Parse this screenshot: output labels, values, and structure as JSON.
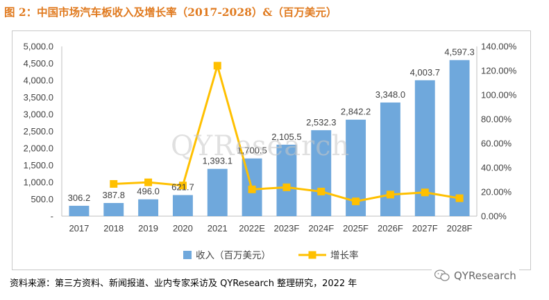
{
  "figure": {
    "title": "图 2：中国市场汽车板收入及增长率（2017-2028）&（百万美元）",
    "source": "资料来源：第三方资料、新闻报道、业内专家采访及 QYResearch 整理研究，2022 年",
    "watermark": "QYResearch",
    "logo_text": "QYResearch"
  },
  "chart_data": {
    "type": "bar",
    "categories": [
      "2017",
      "2018",
      "2019",
      "2020",
      "2021",
      "2022E",
      "2023F",
      "2024F",
      "2025F",
      "2026F",
      "2027F",
      "2028F"
    ],
    "series": [
      {
        "name": "收入（百万美元）",
        "type": "bar",
        "axis": "left",
        "color": "#6fa8dc",
        "values": [
          306.2,
          387.8,
          496.0,
          621.7,
          1393.1,
          1700.5,
          2105.5,
          2532.3,
          2842.2,
          3348.0,
          4003.7,
          4597.3
        ],
        "labels": [
          "306.2",
          "387.8",
          "496.0",
          "621.7",
          "1,393.1",
          "1,700.5",
          "2,105.5",
          "2,532.3",
          "2,842.2",
          "3,348.0",
          "4,003.7",
          "4,597.3"
        ]
      },
      {
        "name": "增长率",
        "type": "line",
        "axis": "right",
        "color": "#ffc000",
        "values": [
          null,
          26.6,
          27.9,
          25.3,
          124.1,
          22.1,
          23.8,
          20.3,
          12.2,
          17.8,
          19.6,
          14.8
        ]
      }
    ],
    "y_left": {
      "ylim": [
        0,
        5000
      ],
      "ticks": [
        0,
        500,
        1000,
        1500,
        2000,
        2500,
        3000,
        3500,
        4000,
        4500,
        5000
      ],
      "tick_labels": [
        "-",
        "500.0",
        "1,000.0",
        "1,500.0",
        "2,000.0",
        "2,500.0",
        "3,000.0",
        "3,500.0",
        "4,000.0",
        "4,500.0",
        "5,000.0"
      ]
    },
    "y_right": {
      "ylim": [
        0,
        140
      ],
      "ticks": [
        0,
        20,
        40,
        60,
        80,
        100,
        120,
        140
      ],
      "tick_labels": [
        "0.00%",
        "20.00%",
        "40.00%",
        "60.00%",
        "80.00%",
        "100.00%",
        "120.00%",
        "140.00%"
      ]
    },
    "grid": false,
    "legend_position": "bottom"
  }
}
